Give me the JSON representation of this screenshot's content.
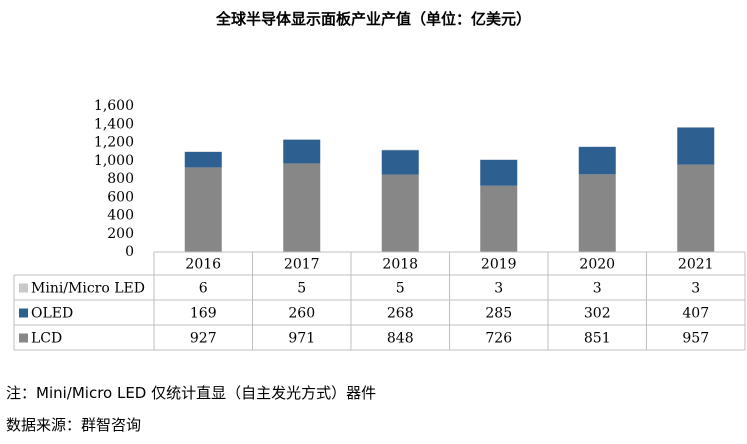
{
  "title": "全球半导体显示面板产业产值（单位：亿美元）",
  "note": "注：Mini/Micro LED 仅统计直显（自主发光方式）器件",
  "source": "数据来源：群智咨询",
  "colors": {
    "mini": "#c8c8c8",
    "oled": "#2d5f91",
    "lcd": "#878787",
    "grid": "#bfbfbf"
  },
  "chart_data": {
    "type": "bar",
    "stacked": true,
    "categories": [
      "2016",
      "2017",
      "2018",
      "2019",
      "2020",
      "2021"
    ],
    "series": [
      {
        "name": "LCD",
        "values": [
          927,
          971,
          848,
          726,
          851,
          957
        ]
      },
      {
        "name": "OLED",
        "values": [
          169,
          260,
          268,
          285,
          302,
          407
        ]
      },
      {
        "name": "Mini/Micro LED",
        "values": [
          6,
          5,
          5,
          3,
          3,
          3
        ]
      }
    ],
    "ylim": [
      0,
      1600
    ],
    "yticks": [
      "0",
      "200",
      "400",
      "600",
      "800",
      "1,000",
      "1,200",
      "1,400",
      "1,600"
    ],
    "table_rows": [
      {
        "label": "Mini/Micro LED",
        "values": [
          "6",
          "5",
          "5",
          "3",
          "3",
          "3"
        ]
      },
      {
        "label": "OLED",
        "values": [
          "169",
          "260",
          "268",
          "285",
          "302",
          "407"
        ]
      },
      {
        "label": "LCD",
        "values": [
          "927",
          "971",
          "848",
          "726",
          "851",
          "957"
        ]
      }
    ]
  }
}
